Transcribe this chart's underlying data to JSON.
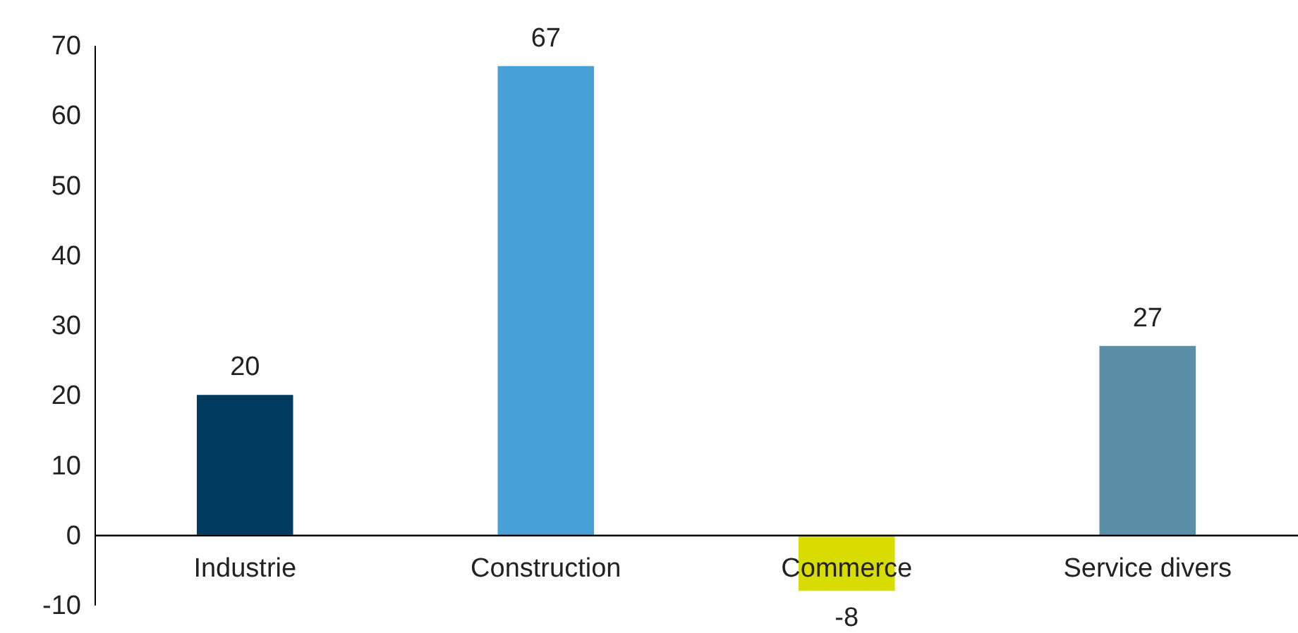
{
  "chart_data": {
    "type": "bar",
    "categories": [
      "Industrie",
      "Construction",
      "Commerce",
      "Service divers"
    ],
    "values": [
      20,
      67,
      -8,
      27
    ],
    "colors": [
      "#003a5f",
      "#47a0d6",
      "#d9dc00",
      "#5b8fa8"
    ],
    "ylim": [
      -10,
      70
    ],
    "yticks": [
      -10,
      0,
      10,
      20,
      30,
      40,
      50,
      60,
      70
    ],
    "grid": false,
    "legend": false,
    "data_labels": true
  }
}
